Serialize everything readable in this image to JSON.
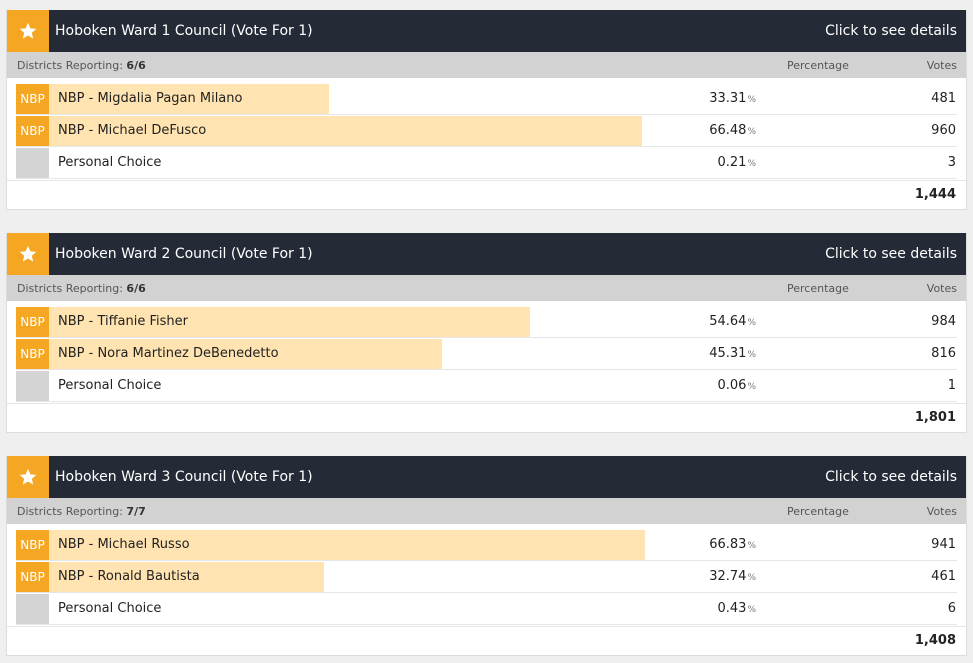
{
  "header_labels": {
    "districts_reporting": "Districts Reporting:",
    "percentage": "Percentage",
    "votes": "Votes",
    "details": "Click to see details",
    "pct_sign": "%"
  },
  "colors": {
    "accent": "#f5a623",
    "bar": "#ffe3b0",
    "header_bg": "#252a37"
  },
  "races": [
    {
      "title": "Hoboken Ward 1 Council (Vote For 1)",
      "districts": "6/6",
      "total": "1,444",
      "candidates": [
        {
          "party": "NBP",
          "name": "NBP - Migdalia Pagan Milano",
          "pct": "33.31",
          "share": 33.31,
          "votes": "481"
        },
        {
          "party": "NBP",
          "name": "NBP - Michael DeFusco",
          "pct": "66.48",
          "share": 66.48,
          "votes": "960"
        },
        {
          "party": "",
          "name": "Personal Choice",
          "pct": "0.21",
          "share": 0,
          "votes": "3"
        }
      ]
    },
    {
      "title": "Hoboken Ward 2 Council (Vote For 1)",
      "districts": "6/6",
      "total": "1,801",
      "candidates": [
        {
          "party": "NBP",
          "name": "NBP - Tiffanie Fisher",
          "pct": "54.64",
          "share": 54.64,
          "votes": "984"
        },
        {
          "party": "NBP",
          "name": "NBP - Nora Martinez DeBenedetto",
          "pct": "45.31",
          "share": 45.31,
          "votes": "816"
        },
        {
          "party": "",
          "name": "Personal Choice",
          "pct": "0.06",
          "share": 0,
          "votes": "1"
        }
      ]
    },
    {
      "title": "Hoboken Ward 3 Council (Vote For 1)",
      "districts": "7/7",
      "total": "1,408",
      "candidates": [
        {
          "party": "NBP",
          "name": "NBP - Michael Russo",
          "pct": "66.83",
          "share": 66.83,
          "votes": "941"
        },
        {
          "party": "NBP",
          "name": "NBP - Ronald Bautista",
          "pct": "32.74",
          "share": 32.74,
          "votes": "461"
        },
        {
          "party": "",
          "name": "Personal Choice",
          "pct": "0.43",
          "share": 0,
          "votes": "6"
        }
      ]
    }
  ]
}
